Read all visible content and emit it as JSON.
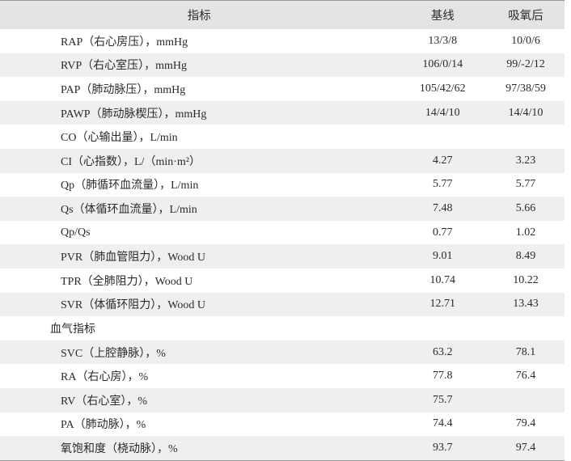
{
  "table": {
    "header": [
      "指标",
      "基线",
      "吸氧后"
    ],
    "rows": [
      [
        "RAP（右心房压），mmHg",
        "13/3/8",
        "10/0/6"
      ],
      [
        "RVP（右心室压），mmHg",
        "106/0/14",
        "99/-2/12"
      ],
      [
        "PAP（肺动脉压），mmHg",
        "105/42/62",
        "97/38/59"
      ],
      [
        "PAWP（肺动脉楔压），mmHg",
        "14/4/10",
        "14/4/10"
      ],
      [
        "CO（心输出量），L/min",
        null,
        null
      ],
      [
        "CI（心指数），L/（min·m²）",
        "4.27",
        "3.23"
      ],
      [
        "Qp（肺循环血流量），L/min",
        "5.77",
        "5.77"
      ],
      [
        "Qs（体循环血流量），L/min",
        "7.48",
        "5.66"
      ],
      [
        "Qp/Qs",
        "0.77",
        "1.02"
      ],
      [
        "PVR（肺血管阻力），Wood U",
        "9.01",
        "8.49"
      ],
      [
        "TPR（全肺阻力），Wood U",
        "10.74",
        "10.22"
      ],
      [
        "SVR（体循环阻力），Wood U",
        "12.71",
        "13.43"
      ],
      [
        "血气指标",
        null,
        null
      ],
      [
        "SVC（上腔静脉），%",
        "63.2",
        "78.1"
      ],
      [
        "RA（右心房），%",
        "77.8",
        "76.4"
      ],
      [
        "RV（右心室），%",
        "75.7",
        null
      ],
      [
        "PA（肺动脉），%",
        "74.4",
        "79.4"
      ],
      [
        "氧饱和度（桡动脉），%",
        "93.7",
        "97.4"
      ]
    ]
  }
}
